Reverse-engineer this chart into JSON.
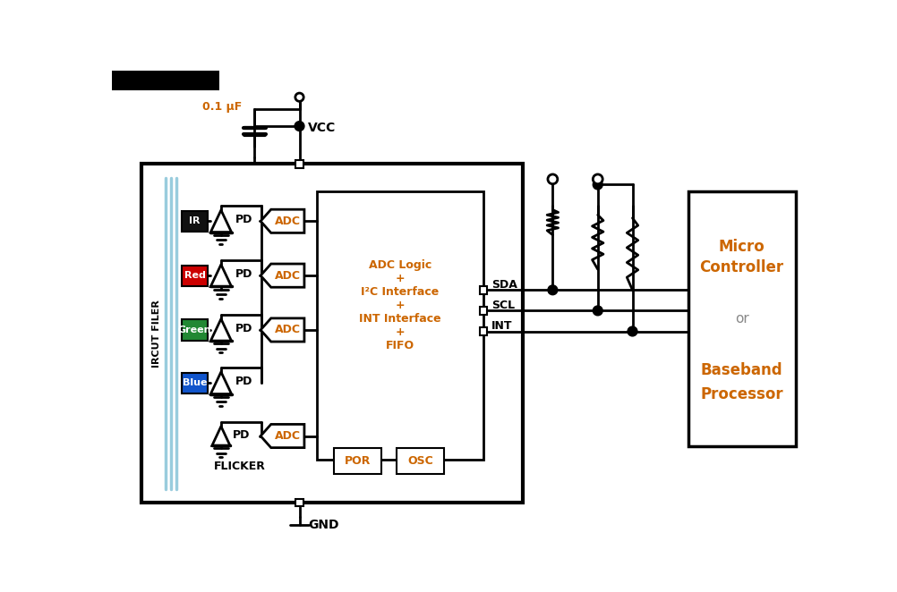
{
  "bg_color": "#ffffff",
  "colors": {
    "black": "#000000",
    "white": "#ffffff",
    "orange": "#cc6600",
    "light_blue": "#99ccdd"
  },
  "channel_labels": [
    "IR",
    "Red",
    "Green",
    "Blue"
  ],
  "channel_colors": [
    "#111111",
    "#cc0000",
    "#228833",
    "#1155cc"
  ],
  "channel_text_colors": [
    "#ffffff",
    "#ffffff",
    "#ffffff",
    "#ffffff"
  ],
  "mc_text_color": "#cc6600",
  "signal_labels": [
    "SDA",
    "SCL",
    "INT"
  ]
}
